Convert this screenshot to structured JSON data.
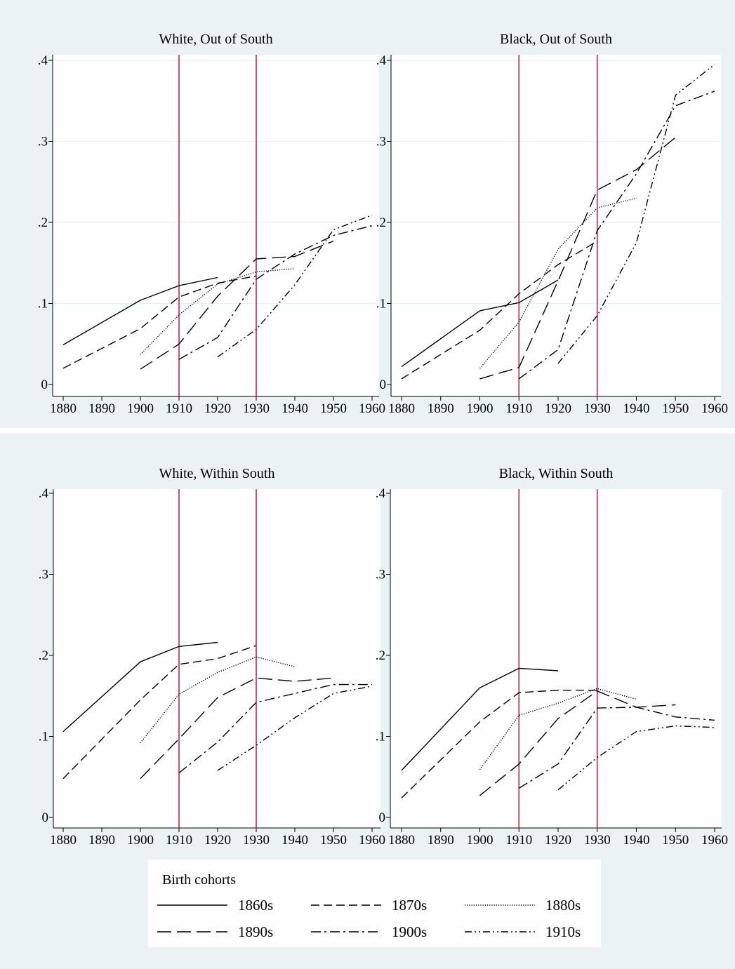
{
  "colors": {
    "band_background": "#eaf2f3",
    "plot_background": "#ffffff",
    "reference_line": "#c8254a",
    "series_line": "#000000",
    "gridline": "#eaf2f3"
  },
  "legend": {
    "title": "Birth cohorts",
    "entries": [
      {
        "label": "1860s",
        "style": "solid"
      },
      {
        "label": "1870s",
        "style": "dash"
      },
      {
        "label": "1880s",
        "style": "dot"
      },
      {
        "label": "1890s",
        "style": "longdash"
      },
      {
        "label": "1900s",
        "style": "dashdot"
      },
      {
        "label": "1910s",
        "style": "dashdotdot"
      }
    ]
  },
  "chart_data": [
    {
      "type": "line",
      "title": "White, Out of South",
      "xlabel": "",
      "ylabel": "",
      "x_ticks": [
        "1880",
        "1890",
        "1900",
        "1910",
        "1920",
        "1930",
        "1940",
        "1950",
        "1960"
      ],
      "y_ticks": [
        "0",
        ".1",
        ".2",
        ".3",
        ".4"
      ],
      "xlim": [
        1880,
        1960
      ],
      "ylim": [
        0,
        0.4
      ],
      "reference_lines_x": [
        1910,
        1930
      ],
      "grid": true,
      "series": [
        {
          "name": "1860s",
          "x": [
            1880,
            1900,
            1910,
            1920
          ],
          "y": [
            0.049,
            0.104,
            0.122,
            0.132
          ]
        },
        {
          "name": "1870s",
          "x": [
            1880,
            1900,
            1910,
            1920,
            1930
          ],
          "y": [
            0.02,
            0.069,
            0.108,
            0.125,
            0.134
          ]
        },
        {
          "name": "1880s",
          "x": [
            1900,
            1910,
            1920,
            1930,
            1940
          ],
          "y": [
            0.037,
            0.086,
            0.124,
            0.139,
            0.143
          ]
        },
        {
          "name": "1890s",
          "x": [
            1900,
            1910,
            1920,
            1930,
            1940,
            1950
          ],
          "y": [
            0.019,
            0.05,
            0.109,
            0.155,
            0.158,
            0.177
          ]
        },
        {
          "name": "1900s",
          "x": [
            1910,
            1920,
            1930,
            1940,
            1950,
            1960
          ],
          "y": [
            0.031,
            0.058,
            0.13,
            0.161,
            0.184,
            0.196
          ]
        },
        {
          "name": "1910s",
          "x": [
            1920,
            1930,
            1940,
            1950,
            1960
          ],
          "y": [
            0.034,
            0.068,
            0.123,
            0.191,
            0.209
          ]
        }
      ]
    },
    {
      "type": "line",
      "title": "Black, Out of South",
      "xlabel": "",
      "ylabel": "",
      "x_ticks": [
        "1880",
        "1890",
        "1900",
        "1910",
        "1920",
        "1930",
        "1940",
        "1950",
        "1960"
      ],
      "y_ticks": [
        "0",
        ".1",
        ".2",
        ".3",
        ".4"
      ],
      "xlim": [
        1880,
        1960
      ],
      "ylim": [
        0,
        0.4
      ],
      "reference_lines_x": [
        1910,
        1930
      ],
      "grid": true,
      "series": [
        {
          "name": "1860s",
          "x": [
            1880,
            1900,
            1910,
            1920
          ],
          "y": [
            0.022,
            0.091,
            0.101,
            0.129
          ]
        },
        {
          "name": "1870s",
          "x": [
            1880,
            1900,
            1910,
            1920,
            1930
          ],
          "y": [
            0.007,
            0.067,
            0.112,
            0.148,
            0.177
          ]
        },
        {
          "name": "1880s",
          "x": [
            1900,
            1910,
            1920,
            1930,
            1940
          ],
          "y": [
            0.02,
            0.077,
            0.167,
            0.218,
            0.23
          ]
        },
        {
          "name": "1890s",
          "x": [
            1900,
            1910,
            1920,
            1930,
            1940,
            1950
          ],
          "y": [
            0.007,
            0.021,
            0.128,
            0.24,
            0.265,
            0.305
          ]
        },
        {
          "name": "1900s",
          "x": [
            1910,
            1920,
            1930,
            1940,
            1950,
            1960
          ],
          "y": [
            0.007,
            0.043,
            0.19,
            0.26,
            0.344,
            0.362
          ]
        },
        {
          "name": "1910s",
          "x": [
            1920,
            1930,
            1940,
            1950,
            1960
          ],
          "y": [
            0.026,
            0.085,
            0.175,
            0.357,
            0.395
          ]
        }
      ]
    },
    {
      "type": "line",
      "title": "White, Within South",
      "xlabel": "",
      "ylabel": "",
      "x_ticks": [
        "1880",
        "1890",
        "1900",
        "1910",
        "1920",
        "1930",
        "1940",
        "1950",
        "1960"
      ],
      "y_ticks": [
        "0",
        ".1",
        ".2",
        ".3",
        ".4"
      ],
      "xlim": [
        1880,
        1960
      ],
      "ylim": [
        0,
        0.4
      ],
      "reference_lines_x": [
        1910,
        1930
      ],
      "grid": false,
      "series": [
        {
          "name": "1860s",
          "x": [
            1880,
            1900,
            1910,
            1920
          ],
          "y": [
            0.106,
            0.192,
            0.211,
            0.216
          ]
        },
        {
          "name": "1870s",
          "x": [
            1880,
            1900,
            1910,
            1920,
            1930
          ],
          "y": [
            0.048,
            0.145,
            0.189,
            0.196,
            0.212
          ]
        },
        {
          "name": "1880s",
          "x": [
            1900,
            1910,
            1920,
            1930,
            1940
          ],
          "y": [
            0.092,
            0.152,
            0.179,
            0.198,
            0.186
          ]
        },
        {
          "name": "1890s",
          "x": [
            1900,
            1910,
            1920,
            1930,
            1940,
            1950
          ],
          "y": [
            0.048,
            0.097,
            0.148,
            0.172,
            0.168,
            0.172
          ]
        },
        {
          "name": "1900s",
          "x": [
            1910,
            1920,
            1930,
            1940,
            1950,
            1960
          ],
          "y": [
            0.055,
            0.093,
            0.142,
            0.153,
            0.164,
            0.164
          ]
        },
        {
          "name": "1910s",
          "x": [
            1920,
            1930,
            1940,
            1950,
            1960
          ],
          "y": [
            0.058,
            0.089,
            0.123,
            0.153,
            0.162
          ]
        }
      ]
    },
    {
      "type": "line",
      "title": "Black, Within South",
      "xlabel": "",
      "ylabel": "",
      "x_ticks": [
        "1880",
        "1890",
        "1900",
        "1910",
        "1920",
        "1930",
        "1940",
        "1950",
        "1960"
      ],
      "y_ticks": [
        "0",
        ".1",
        ".2",
        ".3",
        ".4"
      ],
      "xlim": [
        1880,
        1960
      ],
      "ylim": [
        0,
        0.4
      ],
      "reference_lines_x": [
        1910,
        1930
      ],
      "grid": false,
      "series": [
        {
          "name": "1860s",
          "x": [
            1880,
            1900,
            1910,
            1920
          ],
          "y": [
            0.058,
            0.16,
            0.184,
            0.181
          ]
        },
        {
          "name": "1870s",
          "x": [
            1880,
            1900,
            1910,
            1920,
            1930
          ],
          "y": [
            0.024,
            0.118,
            0.154,
            0.157,
            0.157
          ]
        },
        {
          "name": "1880s",
          "x": [
            1900,
            1910,
            1920,
            1930,
            1940
          ],
          "y": [
            0.059,
            0.126,
            0.141,
            0.159,
            0.146
          ]
        },
        {
          "name": "1890s",
          "x": [
            1900,
            1910,
            1920,
            1930,
            1940,
            1950
          ],
          "y": [
            0.027,
            0.066,
            0.122,
            0.156,
            0.136,
            0.139
          ]
        },
        {
          "name": "1900s",
          "x": [
            1910,
            1920,
            1930,
            1940,
            1950,
            1960
          ],
          "y": [
            0.036,
            0.066,
            0.135,
            0.136,
            0.124,
            0.12
          ]
        },
        {
          "name": "1910s",
          "x": [
            1920,
            1930,
            1940,
            1950,
            1960
          ],
          "y": [
            0.034,
            0.074,
            0.106,
            0.113,
            0.111
          ]
        }
      ]
    }
  ]
}
